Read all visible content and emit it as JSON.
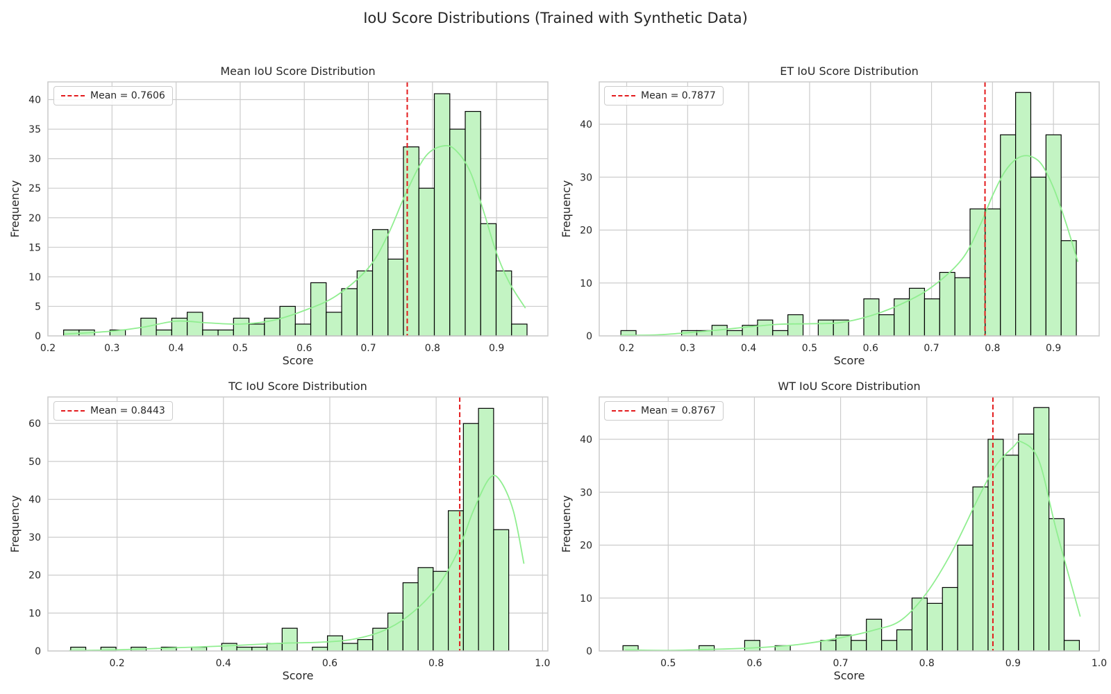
{
  "figure": {
    "title": "IoU Score Distributions (Trained with Synthetic Data)"
  },
  "colors": {
    "bar_fill": "#c3f4c3",
    "bar_stroke": "#000000",
    "kde": "#90ee90",
    "mean_line": "#e31a1c",
    "grid": "#cccccc",
    "frame": "#cccccc"
  },
  "chart_data": [
    {
      "type": "bar",
      "title": "Mean IoU Score Distribution",
      "xlabel": "Score",
      "ylabel": "Frequency",
      "xlim": [
        0.2,
        0.98
      ],
      "ylim": [
        0,
        43
      ],
      "xticks": [
        0.2,
        0.3,
        0.4,
        0.5,
        0.6,
        0.7,
        0.8,
        0.9
      ],
      "xtick_labels": [
        "0.2",
        "0.3",
        "0.4",
        "0.5",
        "0.6",
        "0.7",
        "0.8",
        "0.9"
      ],
      "yticks": [
        0,
        5,
        10,
        15,
        20,
        25,
        30,
        35,
        40
      ],
      "ytick_labels": [
        "0",
        "5",
        "10",
        "15",
        "20",
        "25",
        "30",
        "35",
        "40"
      ],
      "bin_start": 0.2245,
      "bin_width": 0.0241,
      "values": [
        1,
        1,
        0,
        1,
        0,
        3,
        1,
        3,
        4,
        1,
        1,
        3,
        2,
        3,
        5,
        2,
        9,
        4,
        8,
        11,
        18,
        13,
        32,
        25,
        41,
        35,
        38,
        19,
        11,
        2
      ],
      "kde_x": [
        0.225,
        0.3,
        0.35,
        0.4,
        0.45,
        0.5,
        0.55,
        0.6,
        0.65,
        0.7,
        0.73,
        0.76,
        0.79,
        0.82,
        0.84,
        0.86,
        0.88,
        0.9,
        0.92,
        0.945
      ],
      "kde_y": [
        0.3,
        0.8,
        1.5,
        2.5,
        2.2,
        2.0,
        2.6,
        4.3,
        6.8,
        11.5,
        17,
        24.5,
        30.5,
        32.2,
        31.0,
        27.5,
        21,
        14,
        9,
        4.7
      ],
      "mean": 0.7606,
      "legend_label": "Mean = 0.7606"
    },
    {
      "type": "bar",
      "title": "ET IoU Score Distribution",
      "xlabel": "Score",
      "ylabel": "Frequency",
      "xlim": [
        0.155,
        0.975
      ],
      "ylim": [
        0,
        48
      ],
      "xticks": [
        0.2,
        0.3,
        0.4,
        0.5,
        0.6,
        0.7,
        0.8,
        0.9
      ],
      "xtick_labels": [
        "0.2",
        "0.3",
        "0.4",
        "0.5",
        "0.6",
        "0.7",
        "0.8",
        "0.9"
      ],
      "yticks": [
        0,
        10,
        20,
        30,
        40
      ],
      "ytick_labels": [
        "0",
        "10",
        "20",
        "30",
        "40"
      ],
      "bin_start": 0.1905,
      "bin_width": 0.0249,
      "values": [
        1,
        0,
        0,
        0,
        1,
        1,
        2,
        1,
        2,
        3,
        1,
        4,
        0,
        3,
        3,
        0,
        7,
        4,
        7,
        9,
        7,
        12,
        11,
        24,
        24,
        38,
        46,
        30,
        38,
        18
      ],
      "kde_x": [
        0.19,
        0.25,
        0.3,
        0.35,
        0.4,
        0.45,
        0.5,
        0.55,
        0.6,
        0.65,
        0.7,
        0.75,
        0.78,
        0.8,
        0.82,
        0.84,
        0.86,
        0.88,
        0.9,
        0.92,
        0.94
      ],
      "kde_y": [
        0.1,
        0.2,
        0.6,
        1.1,
        1.7,
        2.2,
        2.3,
        2.5,
        3.8,
        6.0,
        9.2,
        14.5,
        21,
        26.5,
        31,
        33.5,
        34,
        32.5,
        28,
        21.5,
        14
      ],
      "mean": 0.7877,
      "legend_label": "Mean = 0.7877"
    },
    {
      "type": "bar",
      "title": "TC IoU Score Distribution",
      "xlabel": "Score",
      "ylabel": "Frequency",
      "xlim": [
        0.07,
        1.01
      ],
      "ylim": [
        0,
        67
      ],
      "xticks": [
        0.2,
        0.4,
        0.6,
        0.8,
        1.0
      ],
      "xtick_labels": [
        "0.2",
        "0.4",
        "0.6",
        "0.8",
        "1.0"
      ],
      "yticks": [
        0,
        10,
        20,
        30,
        40,
        50,
        60
      ],
      "ytick_labels": [
        "0",
        "10",
        "20",
        "30",
        "40",
        "50",
        "60"
      ],
      "bin_start": 0.1128,
      "bin_width": 0.0284,
      "values": [
        1,
        0,
        1,
        0,
        1,
        0,
        1,
        0,
        1,
        0,
        2,
        1,
        1,
        2,
        6,
        0,
        1,
        4,
        2,
        3,
        6,
        10,
        18,
        22,
        21,
        37,
        60,
        64,
        32,
        0
      ],
      "kde_x": [
        0.11,
        0.2,
        0.3,
        0.4,
        0.5,
        0.58,
        0.64,
        0.7,
        0.75,
        0.8,
        0.84,
        0.87,
        0.9,
        0.92,
        0.945,
        0.965
      ],
      "kde_y": [
        0.1,
        0.3,
        0.8,
        1.3,
        2.0,
        2.3,
        3.0,
        5.3,
        9.5,
        16.5,
        26,
        37,
        45.5,
        45,
        37,
        23
      ],
      "mean": 0.8443,
      "legend_label": "Mean = 0.8443"
    },
    {
      "type": "bar",
      "title": "WT IoU Score Distribution",
      "xlabel": "Score",
      "ylabel": "Frequency",
      "xlim": [
        0.42,
        1.0
      ],
      "ylim": [
        0,
        48
      ],
      "xticks": [
        0.5,
        0.6,
        0.7,
        0.8,
        0.9,
        1.0
      ],
      "xtick_labels": [
        "0.5",
        "0.6",
        "0.7",
        "0.8",
        "0.9",
        "1.0"
      ],
      "yticks": [
        0,
        10,
        20,
        30,
        40
      ],
      "ytick_labels": [
        "0",
        "10",
        "20",
        "30",
        "40"
      ],
      "bin_start": 0.4475,
      "bin_width": 0.01765,
      "values": [
        1,
        0,
        0,
        0,
        0,
        1,
        0,
        0,
        2,
        0,
        1,
        0,
        0,
        2,
        3,
        2,
        6,
        2,
        4,
        10,
        9,
        12,
        20,
        31,
        40,
        37,
        41,
        46,
        25,
        2
      ],
      "kde_x": [
        0.45,
        0.5,
        0.55,
        0.6,
        0.65,
        0.7,
        0.74,
        0.77,
        0.8,
        0.83,
        0.86,
        0.88,
        0.9,
        0.91,
        0.93,
        0.95,
        0.978
      ],
      "kde_y": [
        0.2,
        0.1,
        0.3,
        0.6,
        1.2,
        2.5,
        4.0,
        5.8,
        11,
        19,
        29,
        35,
        38.5,
        39.5,
        36,
        23,
        6.5
      ],
      "mean": 0.8767,
      "legend_label": "Mean = 0.8767"
    }
  ]
}
